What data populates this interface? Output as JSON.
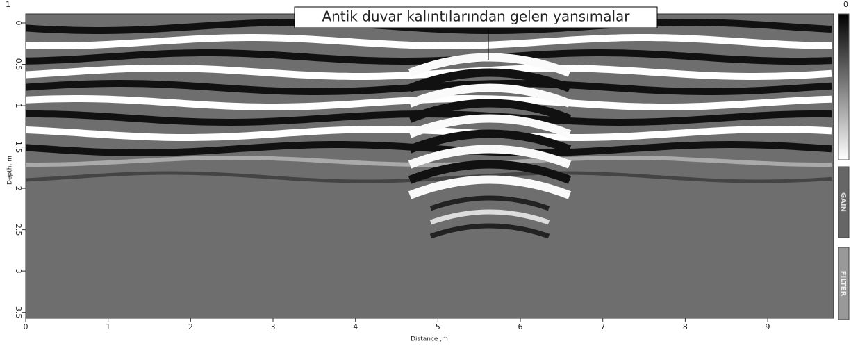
{
  "chart_data": {
    "type": "radargram",
    "annotation": "Antik duvar kalıntılarından gelen yansımalar",
    "x_label": "Distance ,m",
    "y_label": "Depth, m",
    "xlim": [
      0,
      9.8
    ],
    "ylim": [
      3.57,
      0
    ],
    "xticks": [
      0,
      1,
      2,
      3,
      4,
      5,
      6,
      7,
      8,
      9
    ],
    "yticks": [
      0,
      0.5,
      1,
      1.5,
      2,
      2.5,
      3,
      3.5
    ],
    "scale_top_label": "1",
    "scale_right_label": "0",
    "gain_label": "GAIN",
    "filter_label": "FILTER"
  }
}
